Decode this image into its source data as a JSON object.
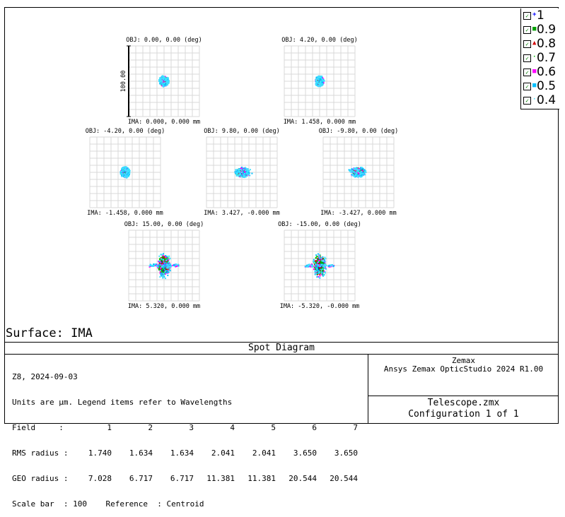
{
  "surface_label": "Surface: IMA",
  "title": "Spot Diagram",
  "legend": [
    {
      "label": "1",
      "color": "#0000ff",
      "marker": "+"
    },
    {
      "label": "0.9",
      "color": "#00a000",
      "marker": "■"
    },
    {
      "label": "0.8",
      "color": "#d00000",
      "marker": "▲"
    },
    {
      "label": "0.7",
      "color": "#00c000",
      "marker": "·"
    },
    {
      "label": "0.6",
      "color": "#ff00ff",
      "marker": "■"
    },
    {
      "label": "0.5",
      "color": "#00c0ff",
      "marker": "■"
    },
    {
      "label": "0.4",
      "color": "#40e0ff",
      "marker": "·"
    }
  ],
  "legend_checkmark": "✓",
  "info": {
    "line1": "Z8, 2024-09-03",
    "line2": "Units are µm. Legend items refer to Wavelengths",
    "field_label": "Field     :",
    "field_values": [
      "1",
      "2",
      "3",
      "4",
      "5",
      "6",
      "7"
    ],
    "rms_label": "RMS radius :",
    "rms_values": [
      "1.740",
      "1.634",
      "1.634",
      "2.041",
      "2.041",
      "3.650",
      "3.650"
    ],
    "geo_label": "GEO radius :",
    "geo_values": [
      "7.028",
      "6.717",
      "6.717",
      "11.381",
      "11.381",
      "20.544",
      "20.544"
    ],
    "scale_line": "Scale bar  : 100    Reference  : Centroid"
  },
  "right_box": {
    "company": "Zemax",
    "product": "Ansys Zemax OpticStudio 2024 R1.00",
    "file": "Telescope.zmx",
    "config": "Configuration 1 of 1"
  },
  "chart_data": {
    "type": "scatter",
    "title": "Spot Diagram",
    "units": "µm",
    "scale_bar": 100,
    "scale_bar_label": "100.00",
    "reference": "Centroid",
    "wavelengths": [
      "1",
      "0.9",
      "0.8",
      "0.7",
      "0.6",
      "0.5",
      "0.4"
    ],
    "spots": [
      {
        "field": 1,
        "obj": "OBJ: 0.00, 0.00 (deg)",
        "ima": "IMA: 0.000, 0.000 mm",
        "rms_radius": 1.74,
        "geo_radius": 7.028,
        "shape": "round",
        "dir": 0
      },
      {
        "field": 2,
        "obj": "OBJ: 4.20, 0.00 (deg)",
        "ima": "IMA: 1.458, 0.000 mm",
        "rms_radius": 1.634,
        "geo_radius": 6.717,
        "shape": "round",
        "dir": 1
      },
      {
        "field": 3,
        "obj": "OBJ: -4.20, 0.00 (deg)",
        "ima": "IMA: -1.458, 0.000 mm",
        "rms_radius": 1.634,
        "geo_radius": 6.717,
        "shape": "round",
        "dir": -1
      },
      {
        "field": 4,
        "obj": "OBJ: 9.80, 0.00 (deg)",
        "ima": "IMA: 3.427, -0.000 mm",
        "rms_radius": 2.041,
        "geo_radius": 11.381,
        "shape": "flared",
        "dir": 1
      },
      {
        "field": 5,
        "obj": "OBJ: -9.80, 0.00 (deg)",
        "ima": "IMA: -3.427, 0.000 mm",
        "rms_radius": 2.041,
        "geo_radius": 11.381,
        "shape": "flared",
        "dir": -1
      },
      {
        "field": 6,
        "obj": "OBJ: 15.00, 0.00 (deg)",
        "ima": "IMA: 5.320, 0.000 mm",
        "rms_radius": 3.65,
        "geo_radius": 20.544,
        "shape": "cross",
        "dir": 1
      },
      {
        "field": 7,
        "obj": "OBJ: -15.00, 0.00 (deg)",
        "ima": "IMA: -5.320, -0.000 mm",
        "rms_radius": 3.65,
        "geo_radius": 20.544,
        "shape": "cross",
        "dir": -1
      }
    ]
  }
}
